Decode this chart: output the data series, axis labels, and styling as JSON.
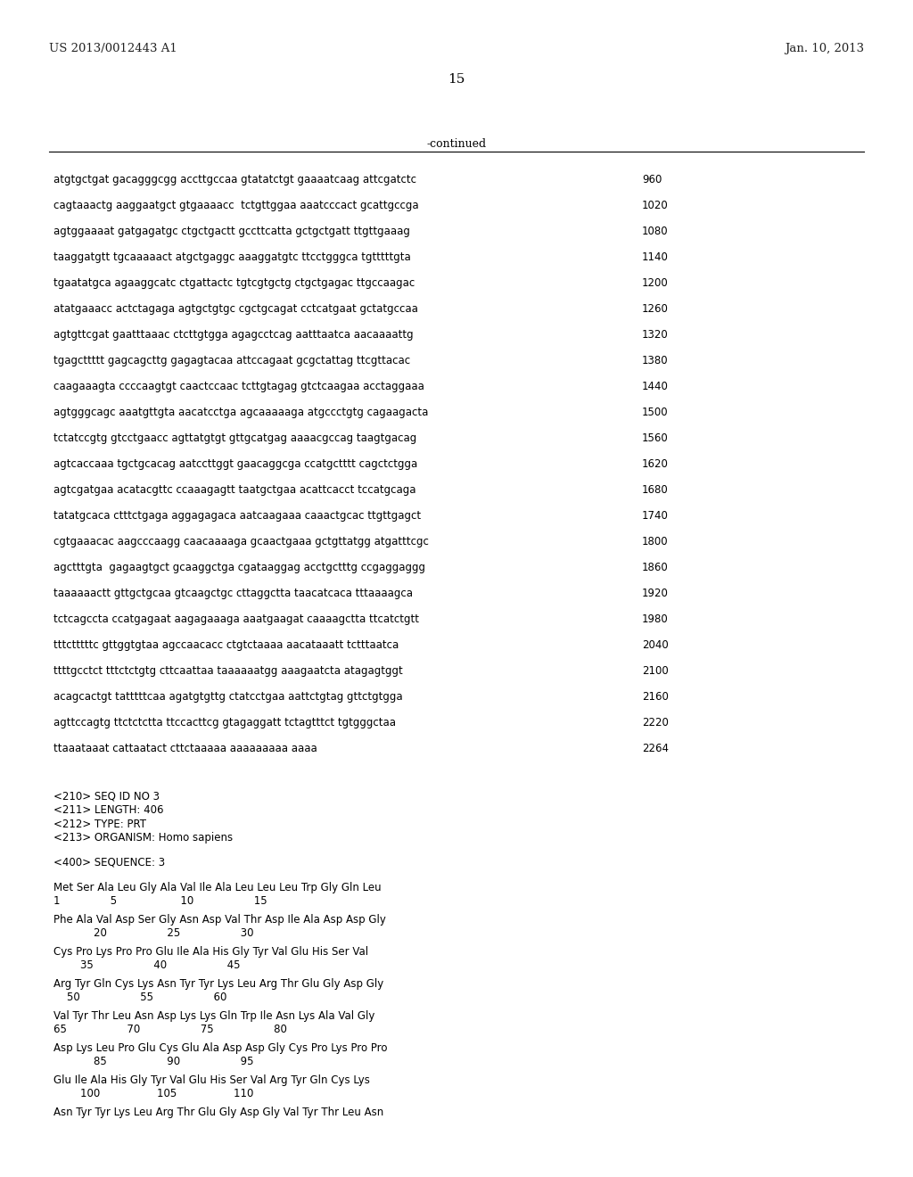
{
  "header_left": "US 2013/0012443 A1",
  "header_right": "Jan. 10, 2013",
  "page_number": "15",
  "continued_label": "-continued",
  "background_color": "#ffffff",
  "sequence_lines": [
    [
      "atgtgctgat gacagggcgg accttgccaa gtatatctgt gaaaatcaag attcgatctc",
      "960"
    ],
    [
      "cagtaaactg aaggaatgct gtgaaaacc  tctgttggaa aaatcccact gcattgccga",
      "1020"
    ],
    [
      "agtggaaaat gatgagatgc ctgctgactt gccttcatta gctgctgatt ttgttgaaag",
      "1080"
    ],
    [
      "taaggatgtt tgcaaaaact atgctgaggc aaaggatgtc ttcctgggca tgtttttgta",
      "1140"
    ],
    [
      "tgaatatgca agaaggcatc ctgattactc tgtcgtgctg ctgctgagac ttgccaagac",
      "1200"
    ],
    [
      "atatgaaacc actctagaga agtgctgtgc cgctgcagat cctcatgaat gctatgccaa",
      "1260"
    ],
    [
      "agtgttcgat gaatttaaac ctcttgtgga agagcctcag aatttaatca aacaaaattg",
      "1320"
    ],
    [
      "tgagcttttt gagcagcttg gagagtacaa attccagaat gcgctattag ttcgttacac",
      "1380"
    ],
    [
      "caagaaagta ccccaagtgt caactccaac tcttgtagag gtctcaagaa acctaggaaa",
      "1440"
    ],
    [
      "agtgggcagc aaatgttgta aacatcctga agcaaaaaga atgccctgtg cagaagacta",
      "1500"
    ],
    [
      "tctatccgtg gtcctgaacc agttatgtgt gttgcatgag aaaacgccag taagtgacag",
      "1560"
    ],
    [
      "agtcaccaaa tgctgcacag aatccttggt gaacaggcga ccatgctttt cagctctgga",
      "1620"
    ],
    [
      "agtcgatgaa acatacgttc ccaaagagtt taatgctgaa acattcacct tccatgcaga",
      "1680"
    ],
    [
      "tatatgcaca ctttctgaga aggagagaca aatcaagaaa caaactgcac ttgttgagct",
      "1740"
    ],
    [
      "cgtgaaacac aagcccaagg caacaaaaga gcaactgaaa gctgttatgg atgatttcgc",
      "1800"
    ],
    [
      "agctttgta  gagaagtgct gcaaggctga cgataaggag acctgctttg ccgaggaggg",
      "1860"
    ],
    [
      "taaaaaactt gttgctgcaa gtcaagctgc cttaggctta taacatcaca tttaaaagca",
      "1920"
    ],
    [
      "tctcagccta ccatgagaat aagagaaaga aaatgaagat caaaagctta ttcatctgtt",
      "1980"
    ],
    [
      "tttctttttc gttggtgtaa agccaacacc ctgtctaaaa aacataaatt tctttaatca",
      "2040"
    ],
    [
      "ttttgcctct tttctctgtg cttcaattaa taaaaaatgg aaagaatcta atagagtggt",
      "2100"
    ],
    [
      "acagcactgt tatttttcaa agatgtgttg ctatcctgaa aattctgtag gttctgtgga",
      "2160"
    ],
    [
      "agttccagtg ttctctctta ttccacttcg gtagaggatt tctagtttct tgtgggctaa",
      "2220"
    ],
    [
      "ttaaataaat cattaatact cttctaaaaa aaaaaaaaa aaaa",
      "2264"
    ]
  ],
  "metadata_lines": [
    "<210> SEQ ID NO 3",
    "<211> LENGTH: 406",
    "<212> TYPE: PRT",
    "<213> ORGANISM: Homo sapiens"
  ],
  "sequence_label": "<400> SEQUENCE: 3",
  "protein_lines": [
    [
      "Met Ser Ala Leu Gly Ala Val Ile Ala Leu Leu Leu Trp Gly Gln Leu",
      "1               5                   10                  15"
    ],
    [
      "Phe Ala Val Asp Ser Gly Asn Asp Val Thr Asp Ile Ala Asp Asp Gly",
      "            20                  25                  30"
    ],
    [
      "Cys Pro Lys Pro Pro Glu Ile Ala His Gly Tyr Val Glu His Ser Val",
      "        35                  40                  45"
    ],
    [
      "Arg Tyr Gln Cys Lys Asn Tyr Tyr Lys Leu Arg Thr Glu Gly Asp Gly",
      "    50                  55                  60"
    ],
    [
      "Val Tyr Thr Leu Asn Asp Lys Lys Gln Trp Ile Asn Lys Ala Val Gly",
      "65                  70                  75                  80"
    ],
    [
      "Asp Lys Leu Pro Glu Cys Glu Ala Asp Asp Gly Cys Pro Lys Pro Pro",
      "            85                  90                  95"
    ],
    [
      "Glu Ile Ala His Gly Tyr Val Glu His Ser Val Arg Tyr Gln Cys Lys",
      "        100                 105                 110"
    ],
    [
      "Asn Tyr Tyr Lys Leu Arg Thr Glu Gly Asp Gly Val Tyr Thr Leu Asn",
      ""
    ]
  ]
}
